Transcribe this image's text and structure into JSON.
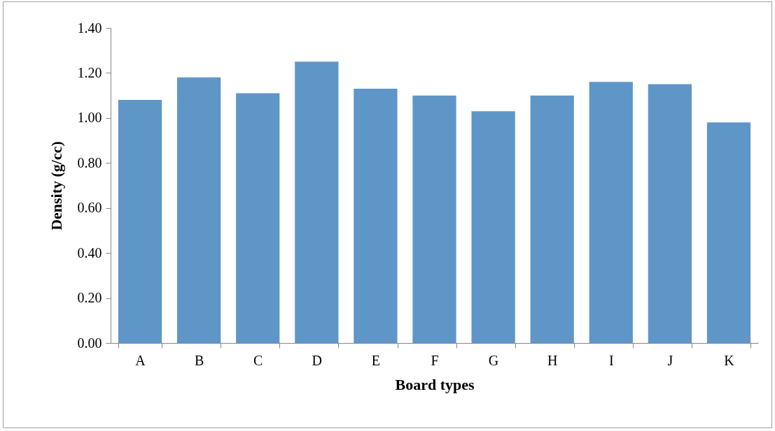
{
  "chart_data": {
    "type": "bar",
    "xlabel": "Board types",
    "ylabel": "Density (g/cc)",
    "categories": [
      "A",
      "B",
      "C",
      "D",
      "E",
      "F",
      "G",
      "H",
      "I",
      "J",
      "K"
    ],
    "values": [
      1.08,
      1.18,
      1.11,
      1.25,
      1.13,
      1.1,
      1.03,
      1.1,
      1.16,
      1.15,
      0.98
    ],
    "color": "#5f96c8",
    "ylim": [
      0,
      1.4
    ],
    "yticks": [
      {
        "value": 0,
        "label": "0.00"
      },
      {
        "value": 0.2,
        "label": "0.20"
      },
      {
        "value": 0.4,
        "label": "0.40"
      },
      {
        "value": 0.6,
        "label": "0.60"
      },
      {
        "value": 0.8,
        "label": "0.80"
      },
      {
        "value": 1.0,
        "label": "1.00"
      },
      {
        "value": 1.2,
        "label": "1.20"
      },
      {
        "value": 1.4,
        "label": "1.40"
      }
    ],
    "grid": false
  }
}
